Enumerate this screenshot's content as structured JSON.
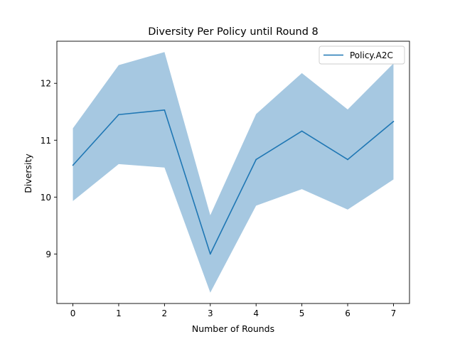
{
  "chart_data": {
    "type": "line",
    "title": "Diversity Per Policy until Round 8",
    "xlabel": "Number of Rounds",
    "ylabel": "Diversity",
    "xlim": [
      -0.35,
      7.35
    ],
    "ylim": [
      8.13,
      12.74
    ],
    "x_ticks": [
      0,
      1,
      2,
      3,
      4,
      5,
      6,
      7
    ],
    "y_ticks": [
      9,
      10,
      11,
      12
    ],
    "grid": false,
    "legend_position": "top-right",
    "series": [
      {
        "name": "Policy.A2C",
        "color": "#1f77b4",
        "band_color": "#a6c8e1",
        "x": [
          0,
          1,
          2,
          3,
          4,
          5,
          6,
          7
        ],
        "values": [
          10.56,
          11.45,
          11.53,
          9.0,
          10.66,
          11.16,
          10.66,
          11.33
        ],
        "upper": [
          11.21,
          12.32,
          12.55,
          9.68,
          11.46,
          12.18,
          11.54,
          12.35
        ],
        "lower": [
          9.93,
          10.58,
          10.52,
          8.32,
          9.85,
          10.14,
          9.78,
          10.31
        ]
      }
    ]
  }
}
